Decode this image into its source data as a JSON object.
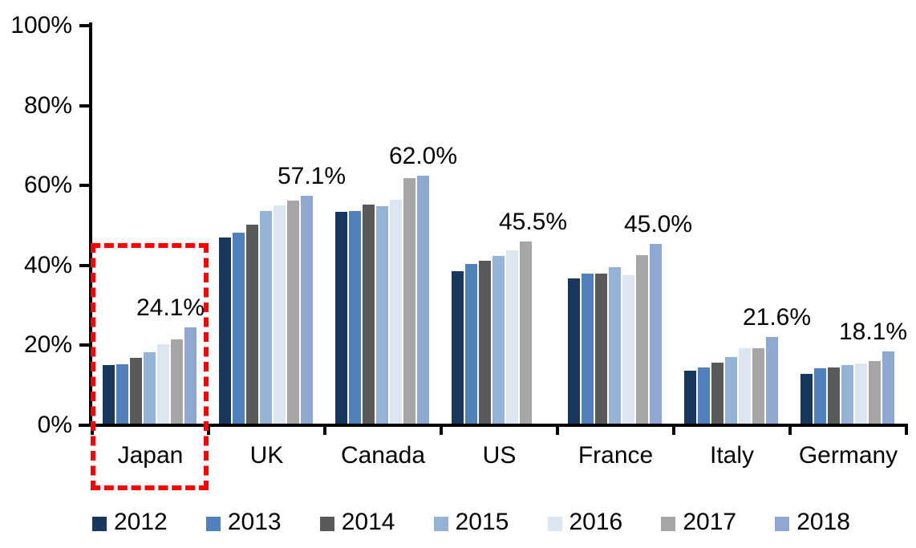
{
  "chart_data": {
    "type": "bar",
    "title": "",
    "unit": "%",
    "categories": [
      "Japan",
      "UK",
      "Canada",
      "US",
      "France",
      "Italy",
      "Germany"
    ],
    "series": [
      {
        "name": "2012",
        "color": "#17375E",
        "values": [
          14.6,
          46.5,
          53.0,
          38.2,
          36.4,
          13.2,
          12.4
        ]
      },
      {
        "name": "2013",
        "color": "#4F81BD",
        "values": [
          14.9,
          47.7,
          53.3,
          40.0,
          37.6,
          14.0,
          13.8
        ]
      },
      {
        "name": "2014",
        "color": "#595959",
        "values": [
          16.4,
          49.8,
          54.9,
          40.8,
          37.5,
          15.2,
          14.1
        ]
      },
      {
        "name": "2015",
        "color": "#95B3D7",
        "values": [
          17.8,
          53.2,
          54.5,
          41.9,
          39.2,
          16.7,
          14.6
        ]
      },
      {
        "name": "2016",
        "color": "#DCE6F1",
        "values": [
          19.8,
          54.7,
          56.0,
          43.4,
          37.2,
          18.8,
          15.1
        ]
      },
      {
        "name": "2017",
        "color": "#A6A6A6",
        "values": [
          21.0,
          55.8,
          61.5,
          45.5,
          42.2,
          18.9,
          15.6
        ]
      },
      {
        "name": "2018",
        "color": "#8FA8D2",
        "values": [
          24.1,
          57.1,
          62.0,
          null,
          45.0,
          21.6,
          18.1
        ]
      }
    ],
    "ylim": [
      0,
      100
    ],
    "y_ticks": [
      "100%",
      "80%",
      "60%",
      "40%",
      "20%",
      "0%"
    ],
    "grid": false,
    "legend_position": "bottom",
    "annotations": [
      {
        "category": "Japan",
        "text": "24.1%",
        "dx": 25
      },
      {
        "category": "UK",
        "text": "57.1%",
        "dx": 56
      },
      {
        "category": "Canada",
        "text": "62.0%",
        "dx": 50
      },
      {
        "category": "US",
        "text": "45.5%",
        "dx": 42
      },
      {
        "category": "France",
        "text": "45.0%",
        "dx": 53
      },
      {
        "category": "Italy",
        "text": "21.6%",
        "dx": 56
      },
      {
        "category": "Germany",
        "text": "18.1%",
        "dx": 31
      }
    ],
    "highlight": {
      "category": "Japan",
      "shape": "dashed-rectangle",
      "color": "#FF0000"
    }
  }
}
